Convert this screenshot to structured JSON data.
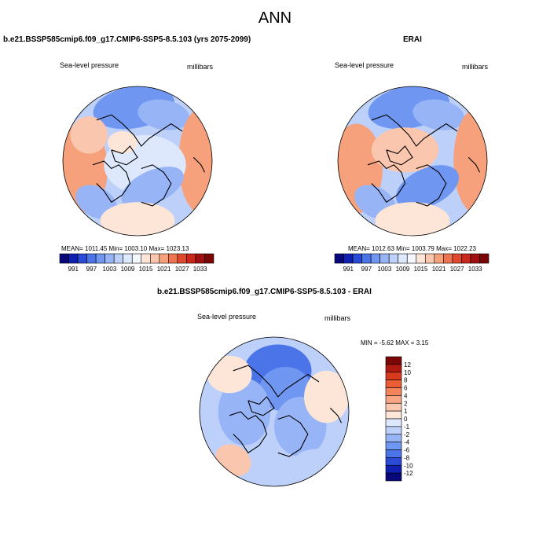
{
  "figure": {
    "season": "ANN"
  },
  "panels": [
    {
      "title": "b.e21.BSSP585cmip6.f09_g17.CMIP6-SSP5-8.5.103 (yrs 2075-2099)",
      "left_label": "Sea-level pressure",
      "right_label": "millibars",
      "stats": "MEAN= 1011.45  Min= 1003.10  Max= 1023.13"
    },
    {
      "title": "ERAI",
      "left_label": "Sea-level pressure",
      "right_label": "millibars",
      "stats": "MEAN= 1012.63  Min= 1003.79  Max= 1022.23"
    },
    {
      "title": "b.e21.BSSP585cmip6.f09_g17.CMIP6-SSP5-8.5.103 - ERAI",
      "left_label": "Sea-level pressure",
      "right_label": "millibars",
      "stats": "MIN = -5.62 MAX =  3.15"
    }
  ],
  "colorbars": {
    "absolute": {
      "labels": [
        "991",
        "997",
        "1003",
        "1009",
        "1015",
        "1021",
        "1027",
        "1033"
      ],
      "colors": [
        "#08087a",
        "#1020b0",
        "#2a4bd6",
        "#4a74e8",
        "#6f96f0",
        "#97b4f6",
        "#bcd0fa",
        "#dde8fc",
        "#f4f7fe",
        "#fde6d8",
        "#fbc6ae",
        "#f6a07c",
        "#ee7550",
        "#e04a2c",
        "#c8281a",
        "#a01010",
        "#7a0606"
      ]
    },
    "difference": {
      "labels": [
        "12",
        "10",
        "8",
        "6",
        "4",
        "2",
        "1",
        "0",
        "-1",
        "-2",
        "-4",
        "-6",
        "-8",
        "-10",
        "-12"
      ],
      "colors": [
        "#7a0606",
        "#b01a10",
        "#d83a1c",
        "#ea5e36",
        "#f2835a",
        "#f6a684",
        "#fac7b0",
        "#fde6d8",
        "#dde8fc",
        "#bcd0fa",
        "#97b4f6",
        "#6f96f0",
        "#4a74e8",
        "#2a4bd6",
        "#1020b0",
        "#08087a"
      ]
    }
  }
}
